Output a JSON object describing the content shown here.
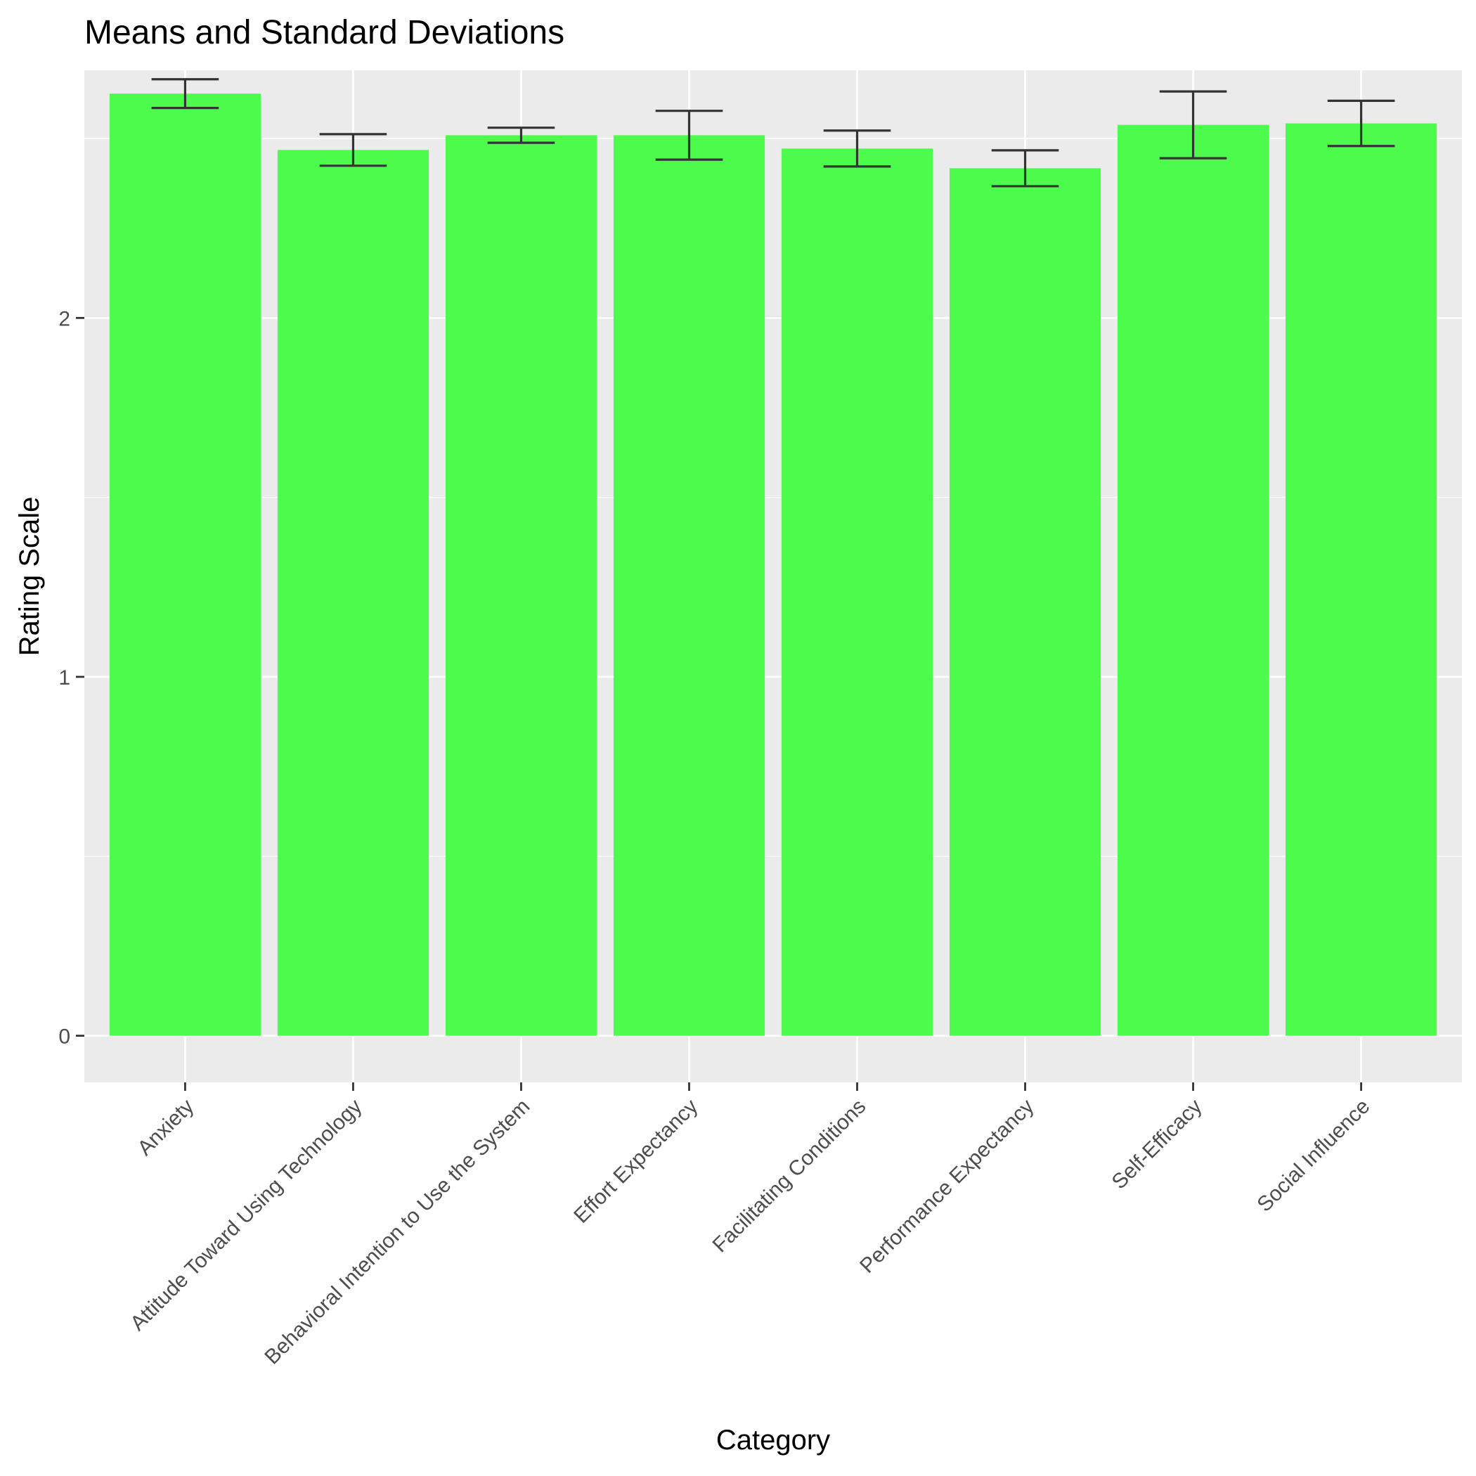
{
  "chart_data": {
    "type": "bar",
    "title": "Means and Standard Deviations",
    "xlabel": "Category",
    "ylabel": "Rating Scale",
    "categories": [
      "Anxiety",
      "Attitude Toward Using Technology",
      "Behavioral Intention to Use the System",
      "Effort Expectancy",
      "Facilitating Conditions",
      "Performance Expectancy",
      "Self-Efficacy",
      "Social Influence"
    ],
    "values": [
      2.625,
      2.468,
      2.509,
      2.509,
      2.472,
      2.417,
      2.538,
      2.542
    ],
    "errors": [
      0.04,
      0.044,
      0.021,
      0.068,
      0.05,
      0.05,
      0.093,
      0.063
    ],
    "ylim": [
      -0.13,
      2.69
    ],
    "yticks": [
      0,
      1,
      2
    ],
    "grid": true,
    "legend": "none",
    "colors": {
      "bar": "#4cfb4c",
      "error_bar": "#333333",
      "panel": "#ebebeb",
      "grid": "#ffffff",
      "tick": "#333333"
    }
  }
}
